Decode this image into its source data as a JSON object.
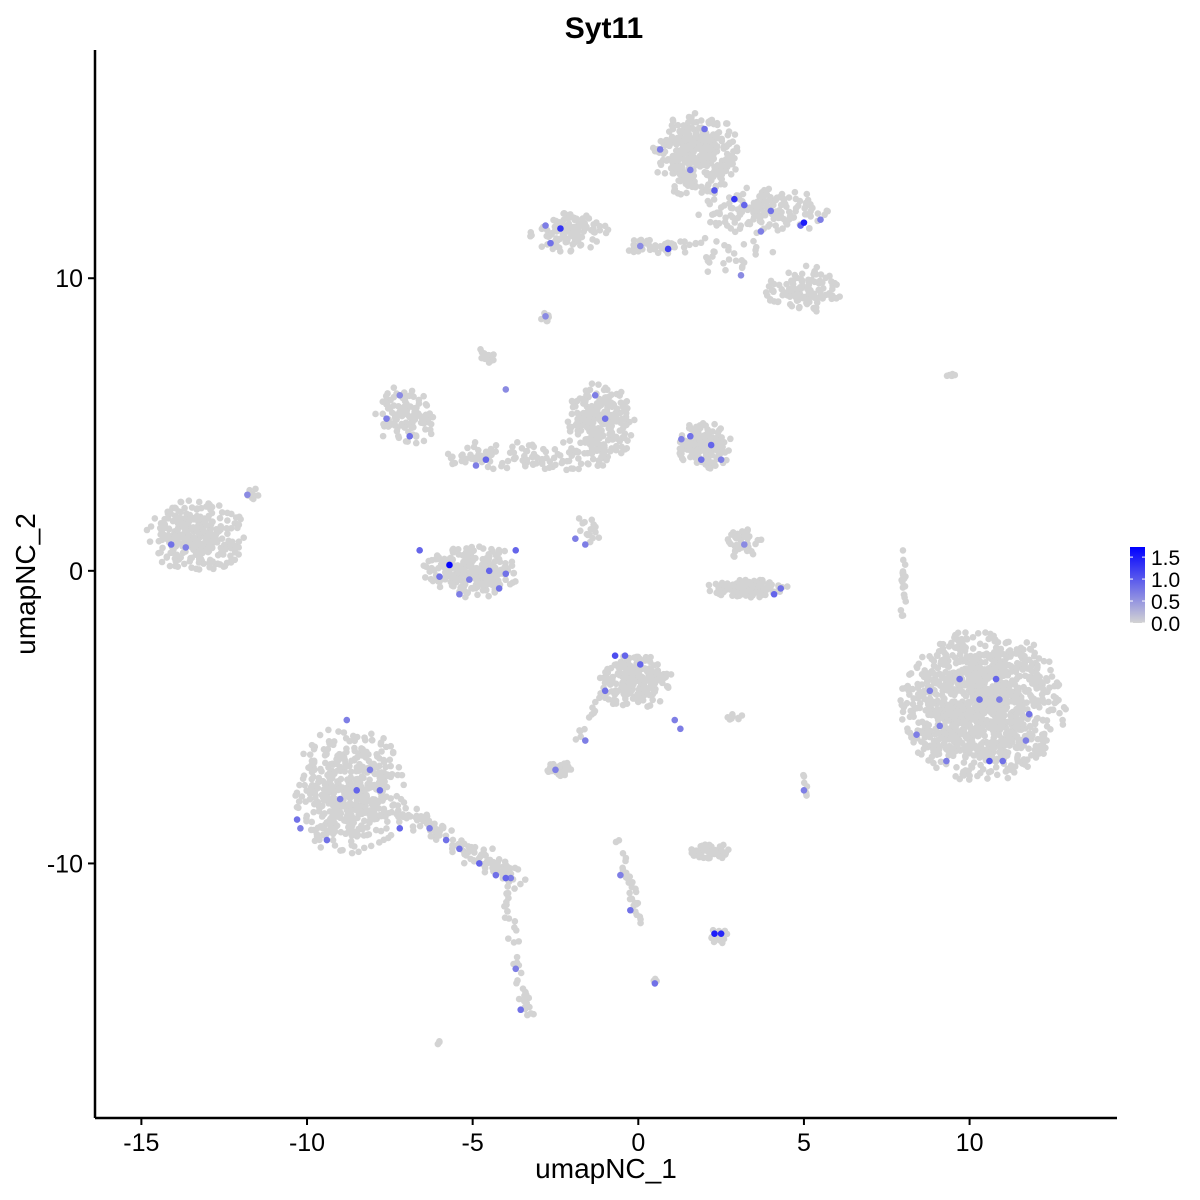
{
  "chart_data": {
    "type": "scatter",
    "title": "Syt11",
    "xlabel": "umapNC_1",
    "ylabel": "umapNC_2",
    "xlim": [
      -16.4,
      14.45
    ],
    "ylim": [
      -18.7,
      17.8
    ],
    "xticks": [
      -15,
      -10,
      -5,
      0,
      5,
      10
    ],
    "xtick_labels": [
      "-15",
      "-10",
      "-5",
      "0",
      "5",
      "10"
    ],
    "yticks": [
      -10,
      0,
      10
    ],
    "ytick_labels": [
      "-10",
      "0",
      "10"
    ],
    "grid": false,
    "colors": {
      "low": "#d3d3d3",
      "high": "#0000ff",
      "axis": "#000000"
    },
    "legend": {
      "placement": "right",
      "type": "colorbar",
      "range": [
        0,
        1.73
      ],
      "ticks": [
        0.0,
        0.5,
        1.0,
        1.5
      ],
      "tick_labels": [
        "0.0",
        "0.5",
        "1.0",
        "1.5"
      ]
    },
    "clusters": [
      {
        "center": [
          1.78,
          14.2
        ],
        "spread": [
          1.3,
          1.4
        ],
        "n": 350
      },
      {
        "center": [
          3.8,
          12.3
        ],
        "spread": [
          2.0,
          0.8
        ],
        "n": 150
      },
      {
        "center": [
          5.0,
          9.6
        ],
        "spread": [
          1.1,
          0.8
        ],
        "n": 120
      },
      {
        "center": [
          -2.05,
          11.6
        ],
        "spread": [
          1.2,
          0.7
        ],
        "n": 120
      },
      {
        "center": [
          0.6,
          11.1
        ],
        "spread": [
          1.2,
          0.25
        ],
        "n": 40
      },
      {
        "center": [
          2.8,
          10.8
        ],
        "spread": [
          1.4,
          0.9
        ],
        "n": 30
      },
      {
        "center": [
          -13.35,
          1.2
        ],
        "spread": [
          1.5,
          1.2
        ],
        "n": 300
      },
      {
        "center": [
          -7.0,
          5.3
        ],
        "spread": [
          0.9,
          1.0
        ],
        "n": 120
      },
      {
        "center": [
          -1.15,
          5.0
        ],
        "spread": [
          1.0,
          1.4
        ],
        "n": 250
      },
      {
        "center": [
          2.0,
          4.3
        ],
        "spread": [
          0.8,
          0.8
        ],
        "n": 150
      },
      {
        "center": [
          -3.5,
          3.9
        ],
        "spread": [
          2.5,
          0.6
        ],
        "n": 100
      },
      {
        "center": [
          -5.05,
          0.0
        ],
        "spread": [
          1.4,
          0.9
        ],
        "n": 250
      },
      {
        "center": [
          3.3,
          -0.6
        ],
        "spread": [
          1.2,
          0.3
        ],
        "n": 120
      },
      {
        "center": [
          3.2,
          1.0
        ],
        "spread": [
          0.5,
          0.6
        ],
        "n": 40
      },
      {
        "center": [
          10.4,
          -4.6
        ],
        "spread": [
          2.4,
          2.5
        ],
        "n": 1200
      },
      {
        "center": [
          -0.1,
          -3.8
        ],
        "spread": [
          1.1,
          0.9
        ],
        "n": 220
      },
      {
        "center": [
          -8.7,
          -7.5
        ],
        "spread": [
          1.6,
          2.2
        ],
        "n": 500
      },
      {
        "center": [
          -2.4,
          -6.8
        ],
        "spread": [
          0.5,
          0.3
        ],
        "n": 40
      },
      {
        "center": [
          2.3,
          -9.6
        ],
        "spread": [
          0.7,
          0.25
        ],
        "n": 60
      },
      {
        "center": [
          2.4,
          -12.5
        ],
        "spread": [
          0.3,
          0.3
        ],
        "n": 20
      },
      {
        "center": [
          -4.6,
          7.4
        ],
        "spread": [
          0.3,
          0.3
        ],
        "n": 15
      },
      {
        "center": [
          -2.8,
          8.7
        ],
        "spread": [
          0.2,
          0.2
        ],
        "n": 8
      },
      {
        "center": [
          -11.6,
          2.6
        ],
        "spread": [
          0.3,
          0.2
        ],
        "n": 8
      },
      {
        "center": [
          2.8,
          -5.0
        ],
        "spread": [
          0.4,
          0.1
        ],
        "n": 8
      },
      {
        "center": [
          9.4,
          6.7
        ],
        "spread": [
          0.3,
          0.1
        ],
        "n": 5
      },
      {
        "center": [
          -6.05,
          -16.1
        ],
        "spread": [
          0.1,
          0.1
        ],
        "n": 3
      },
      {
        "center": [
          0.5,
          -14.0
        ],
        "spread": [
          0.1,
          0.1
        ],
        "n": 3
      },
      {
        "center": [
          -1.5,
          1.4
        ],
        "spread": [
          0.4,
          0.6
        ],
        "n": 15
      }
    ],
    "segments": [
      {
        "from": [
          -7.2,
          -8.2
        ],
        "to": [
          -3.7,
          -10.5
        ],
        "width": 0.35,
        "n": 130
      },
      {
        "from": [
          -4.0,
          -10.9
        ],
        "to": [
          -3.3,
          -15.3
        ],
        "width": 0.2,
        "n": 40
      },
      {
        "from": [
          -0.6,
          -9.2
        ],
        "to": [
          0.1,
          -12.1
        ],
        "width": 0.15,
        "n": 30
      },
      {
        "from": [
          7.9,
          -1.7
        ],
        "to": [
          8.1,
          0.7
        ],
        "width": 0.1,
        "n": 20
      },
      {
        "from": [
          5.0,
          -7.0
        ],
        "to": [
          5.1,
          -7.7
        ],
        "width": 0.05,
        "n": 8
      },
      {
        "from": [
          -1.9,
          -5.8
        ],
        "to": [
          -0.8,
          -3.8
        ],
        "width": 0.1,
        "n": 15
      }
    ],
    "expressing_points": [
      [
        0.66,
        14.4,
        0.7
      ],
      [
        2.0,
        15.1,
        0.8
      ],
      [
        2.3,
        13.0,
        1.0
      ],
      [
        1.57,
        13.7,
        0.7
      ],
      [
        3.2,
        12.5,
        0.9
      ],
      [
        4.0,
        12.3,
        0.8
      ],
      [
        4.9,
        11.8,
        0.9
      ],
      [
        5.5,
        12.0,
        0.7
      ],
      [
        5.0,
        11.9,
        1.5
      ],
      [
        2.9,
        12.7,
        1.3
      ],
      [
        3.7,
        11.6,
        0.7
      ],
      [
        0.9,
        11.0,
        1.2
      ],
      [
        0.06,
        11.1,
        0.6
      ],
      [
        -2.8,
        11.8,
        0.7
      ],
      [
        -2.35,
        11.7,
        1.3
      ],
      [
        -2.65,
        11.2,
        0.8
      ],
      [
        3.1,
        10.1,
        0.6
      ],
      [
        -2.8,
        8.7,
        0.6
      ],
      [
        -1.3,
        6.0,
        0.7
      ],
      [
        -1.0,
        5.2,
        0.8
      ],
      [
        1.57,
        4.6,
        0.8
      ],
      [
        2.2,
        4.3,
        0.9
      ],
      [
        2.5,
        3.8,
        0.7
      ],
      [
        1.9,
        3.8,
        0.8
      ],
      [
        1.3,
        4.5,
        0.7
      ],
      [
        -4.6,
        3.8,
        0.9
      ],
      [
        -4.9,
        3.6,
        0.7
      ],
      [
        -4.0,
        6.2,
        0.6
      ],
      [
        -7.6,
        5.2,
        0.7
      ],
      [
        -6.9,
        4.6,
        0.8
      ],
      [
        -7.2,
        6.0,
        0.6
      ],
      [
        -6.6,
        0.7,
        0.9
      ],
      [
        -5.7,
        0.2,
        1.7
      ],
      [
        -6.0,
        -0.2,
        0.8
      ],
      [
        -5.1,
        -0.3,
        0.7
      ],
      [
        -4.5,
        0.0,
        0.9
      ],
      [
        -4.0,
        -0.1,
        0.8
      ],
      [
        -3.7,
        0.7,
        0.9
      ],
      [
        -5.4,
        -0.8,
        0.7
      ],
      [
        -4.2,
        -0.6,
        0.8
      ],
      [
        -1.9,
        1.1,
        0.7
      ],
      [
        -1.6,
        0.9,
        0.7
      ],
      [
        -14.1,
        0.9,
        0.8
      ],
      [
        -13.66,
        0.8,
        0.7
      ],
      [
        -11.8,
        2.6,
        0.6
      ],
      [
        4.1,
        -0.8,
        0.9
      ],
      [
        4.3,
        -0.6,
        0.8
      ],
      [
        3.2,
        0.9,
        0.6
      ],
      [
        8.8,
        -4.1,
        0.7
      ],
      [
        9.7,
        -3.7,
        0.8
      ],
      [
        10.8,
        -3.7,
        0.9
      ],
      [
        10.9,
        -4.4,
        0.7
      ],
      [
        11.8,
        -4.9,
        0.8
      ],
      [
        11.7,
        -5.8,
        0.7
      ],
      [
        10.6,
        -6.5,
        1.0
      ],
      [
        11.0,
        -6.5,
        0.8
      ],
      [
        9.3,
        -6.5,
        0.7
      ],
      [
        8.4,
        -5.6,
        0.7
      ],
      [
        10.3,
        -4.4,
        0.8
      ],
      [
        9.1,
        -5.3,
        0.7
      ],
      [
        -0.7,
        -2.9,
        1.1
      ],
      [
        -0.4,
        -2.9,
        0.9
      ],
      [
        -1.0,
        -4.1,
        0.8
      ],
      [
        0.06,
        -3.2,
        0.9
      ],
      [
        1.1,
        -5.1,
        0.7
      ],
      [
        1.27,
        -5.4,
        0.7
      ],
      [
        -10.3,
        -8.5,
        0.8
      ],
      [
        -10.2,
        -8.8,
        0.7
      ],
      [
        -9.4,
        -9.2,
        0.8
      ],
      [
        -9.0,
        -7.8,
        0.7
      ],
      [
        -8.5,
        -7.5,
        0.9
      ],
      [
        -8.1,
        -6.8,
        0.7
      ],
      [
        -7.8,
        -7.5,
        0.8
      ],
      [
        -8.8,
        -5.1,
        0.7
      ],
      [
        -7.2,
        -8.8,
        0.9
      ],
      [
        -6.3,
        -8.8,
        0.7
      ],
      [
        -5.4,
        -9.5,
        0.8
      ],
      [
        -4.8,
        -10.0,
        0.9
      ],
      [
        -4.3,
        -10.4,
        0.8
      ],
      [
        -4.0,
        -10.5,
        0.9
      ],
      [
        -3.85,
        -10.5,
        0.7
      ],
      [
        -5.8,
        -9.2,
        0.8
      ],
      [
        -3.55,
        -15.0,
        0.8
      ],
      [
        -3.7,
        -13.6,
        0.7
      ],
      [
        -2.5,
        -6.8,
        0.7
      ],
      [
        -1.6,
        -5.8,
        0.7
      ],
      [
        -0.24,
        -11.6,
        0.8
      ],
      [
        -0.54,
        -10.4,
        0.7
      ],
      [
        2.3,
        -12.4,
        1.5
      ],
      [
        2.5,
        -12.4,
        1.4
      ],
      [
        5.0,
        -7.5,
        0.7
      ],
      [
        0.5,
        -14.1,
        0.8
      ]
    ]
  }
}
